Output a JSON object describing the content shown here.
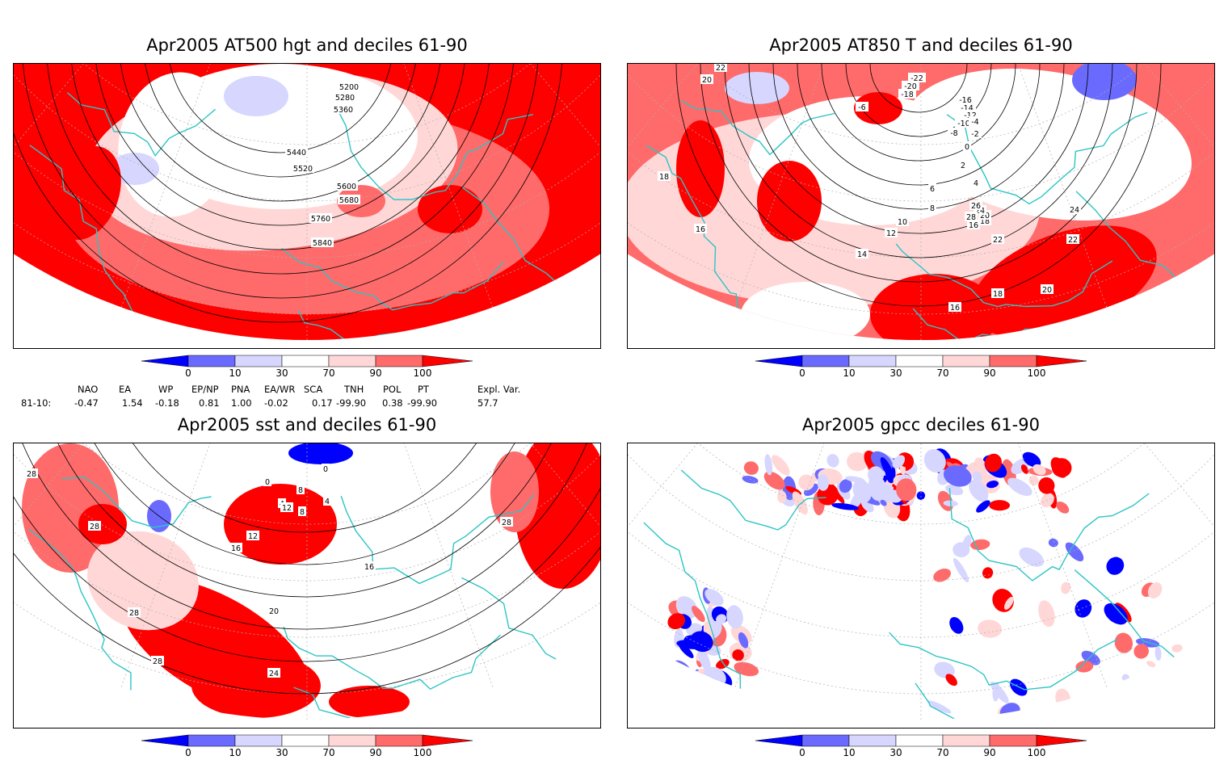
{
  "panels": [
    {
      "title": "Apr2005 AT500 hgt and deciles 61-90",
      "contour_labels": [
        "5200",
        "5280",
        "5360",
        "5440",
        "5520",
        "5600",
        "5680",
        "5760",
        "5840"
      ]
    },
    {
      "title": "Apr2005 AT850 T and deciles 61-90",
      "contour_labels": [
        "22",
        "20",
        "18",
        "16",
        "-22",
        "-20",
        "-18",
        "-16",
        "-14",
        "-12",
        "-10",
        "-8",
        "-6",
        "-4",
        "-2",
        "0",
        "2",
        "4",
        "6",
        "8",
        "10",
        "12",
        "14",
        "16",
        "18",
        "20",
        "24",
        "26",
        "28",
        "22",
        "24",
        "22",
        "20",
        "18",
        "16"
      ]
    },
    {
      "title": "Apr2005 sst and deciles 61-90",
      "contour_labels": [
        "28",
        "28",
        "28",
        "28",
        "24",
        "20",
        "16",
        "12",
        "8",
        "4",
        "0",
        "0",
        "4",
        "8",
        "12",
        "16",
        "28"
      ]
    },
    {
      "title": "Apr2005 gpcc deciles 61-90",
      "contour_labels": []
    }
  ],
  "colorbar": {
    "ticks": [
      "0",
      "10",
      "30",
      "70",
      "90",
      "100"
    ],
    "colors": {
      "below_0": "#0000ff",
      "d0_10": "#6a6aff",
      "d10_30": "#d6d6ff",
      "d30_70": "#ffffff",
      "d70_90": "#ffd7d7",
      "d90_100": "#ff6a6a",
      "above_100": "#ff0000"
    }
  },
  "indices": {
    "headers": [
      "NAO",
      "EA",
      "WP",
      "EP/NP",
      "PNA",
      "EA/WR",
      "SCA",
      "TNH",
      "POL",
      "PT",
      "Expl. Var."
    ],
    "row_label": "81-10:",
    "values": [
      "-0.47",
      "1.54",
      "-0.18",
      "0.81",
      "1.00",
      "-0.02",
      "0.17",
      "-99.90",
      "0.38",
      "-99.90",
      "57.7"
    ]
  },
  "map_colors": {
    "coast": "#2ec4c4",
    "contour": "#000000",
    "grid": "#b0b0b0"
  }
}
